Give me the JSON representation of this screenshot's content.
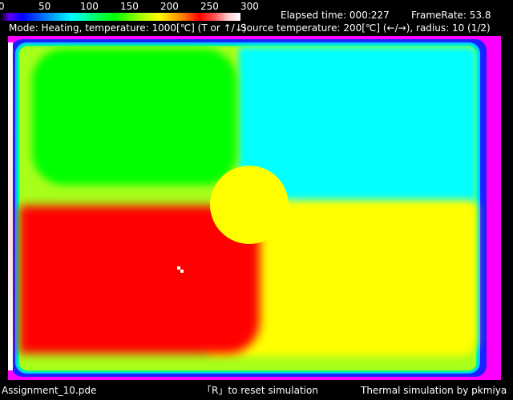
{
  "colorbar": {
    "ticks": [
      "0",
      "50",
      "100",
      "150",
      "200",
      "250",
      "300"
    ]
  },
  "status": {
    "elapsed": "Elapsed time: 000:227",
    "framerate": "FrameRate: 53.8"
  },
  "mode_line": "Mode: Heating, temperature: 1000[℃] (T or ↑/↓)",
  "source_line": "Source temperature: 200[℃] (←/→), radius: 10  (1/2)",
  "footer": {
    "filename": "Assignment_10.pde",
    "reset_hint": "「R」to reset simulation",
    "credit": "Thermal simulation by pkmiya"
  },
  "colors": {
    "magenta_border": "#ff00ff",
    "cyan": "#00ffff",
    "green": "#00ff00",
    "yellow": "#ffff00",
    "red": "#ff0000"
  }
}
